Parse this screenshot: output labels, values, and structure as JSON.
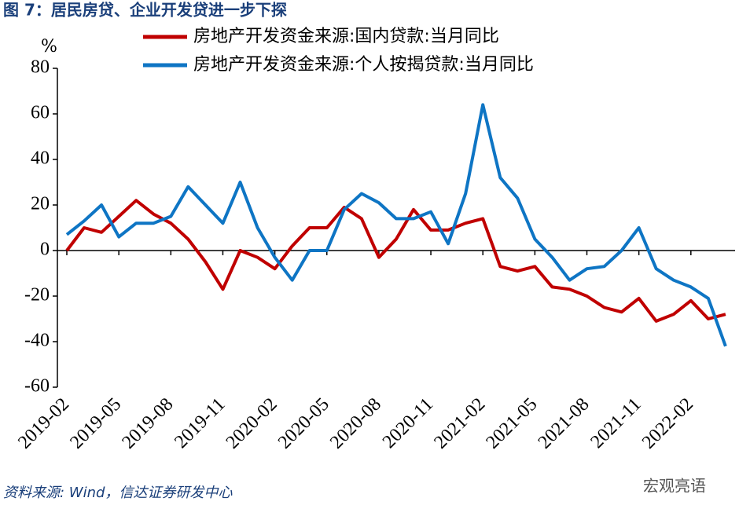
{
  "chart_data": {
    "type": "line",
    "title": "图 7：居民房贷、企业开发贷进一步下探",
    "y_label": "%",
    "source": "资料来源: Wind，信达证券研发中心",
    "watermark": "宏观亮语",
    "x": [
      "2019-02",
      null,
      null,
      "2019-05",
      null,
      null,
      "2019-08",
      null,
      null,
      "2019-11",
      null,
      null,
      "2020-02",
      null,
      null,
      "2020-05",
      null,
      null,
      "2020-08",
      null,
      null,
      "2020-11",
      null,
      null,
      "2021-02",
      null,
      null,
      "2021-05",
      null,
      null,
      "2021-08",
      null,
      null,
      "2021-11",
      null,
      null,
      "2022-02",
      null,
      null
    ],
    "series": [
      {
        "name": "房地产开发资金来源:国内贷款:当月同比",
        "color": "#c00000",
        "values": [
          0,
          10,
          8,
          15,
          22,
          16,
          12,
          5,
          -5,
          -17,
          0,
          -3,
          -8,
          2,
          10,
          10,
          19,
          14,
          -3,
          5,
          18,
          9,
          9,
          12,
          14,
          -7,
          -9,
          -7,
          -16,
          -17,
          -20,
          -25,
          -27,
          -21,
          -31,
          -28,
          -22,
          -30,
          -28
        ]
      },
      {
        "name": "房地产开发资金来源:个人按揭贷款:当月同比",
        "color": "#0e75c4",
        "values": [
          7,
          13,
          20,
          6,
          12,
          12,
          15,
          28,
          20,
          12,
          30,
          10,
          -3,
          -13,
          0,
          0,
          18,
          25,
          21,
          14,
          14,
          17,
          3,
          25,
          64,
          32,
          23,
          5,
          -3,
          -13,
          -8,
          -7,
          0,
          10,
          -8,
          -13,
          -16,
          -21,
          -42
        ]
      }
    ],
    "ylim": [
      -60,
      80
    ],
    "yticks": [
      -60,
      -40,
      -20,
      0,
      20,
      40,
      60,
      80
    ]
  }
}
